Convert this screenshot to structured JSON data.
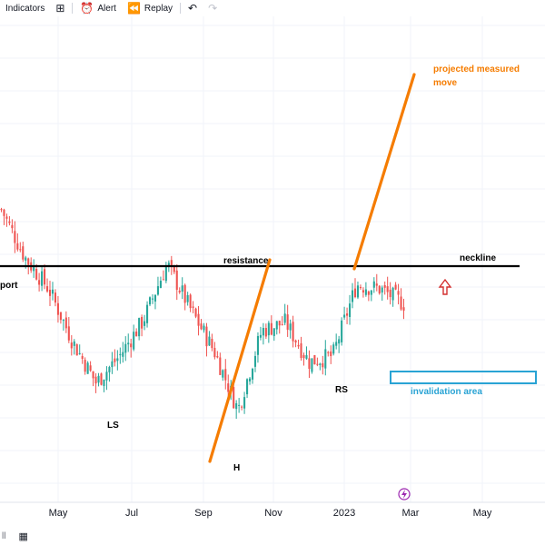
{
  "toolbar": {
    "indicators_label": "Indicators",
    "templates_icon": "grid-icon",
    "alert_label": "Alert",
    "alert_icon": "alarm-clock-icon",
    "replay_label": "Replay",
    "replay_icon": "rewind-icon",
    "undo_icon": "undo-icon",
    "redo_icon": "redo-icon"
  },
  "bottom_bar": {
    "left_text": "ll",
    "calendar_icon": "calendar-icon"
  },
  "colors": {
    "up": "#26a69a",
    "down": "#ef5350",
    "neckline": "#000000",
    "projection": "#f57c00",
    "annotation_orange": "#f57c00",
    "invalidation": "#29a3d4",
    "arrow": "#d32f2f",
    "grid": "#f0f3fa",
    "event_marker": "#9c27b0"
  },
  "chart_data": {
    "type": "candlestick",
    "x_axis_ticks": [
      "May",
      "Jul",
      "Sep",
      "Nov",
      "2023",
      "Mar",
      "May"
    ],
    "price_path": {
      "description_points": [
        {
          "date": "Mar",
          "price": 0.78
        },
        {
          "date": "Apr",
          "price": 0.55
        },
        {
          "date": "May",
          "price": 0.4
        },
        {
          "date": "early Jun",
          "price": 0.15
        },
        {
          "date": "mid Jun",
          "price": -0.05
        },
        {
          "date": "Jul",
          "price": 0.08
        },
        {
          "date": "Aug",
          "price": 0.25
        },
        {
          "date": "late Aug",
          "price": 0.52
        },
        {
          "date": "Sep",
          "price": 0.3
        },
        {
          "date": "early Oct",
          "price": 0.1
        },
        {
          "date": "mid Oct",
          "price": -0.18
        },
        {
          "date": "Nov",
          "price": 0.2
        },
        {
          "date": "Dec",
          "price": 0.24
        },
        {
          "date": "late Dec",
          "price": 0.05
        },
        {
          "date": "Jan",
          "price": 0.08
        },
        {
          "date": "early Feb",
          "price": 0.42
        },
        {
          "date": "Feb",
          "price": 0.4
        },
        {
          "date": "late Feb",
          "price": 0.33
        }
      ]
    },
    "annotations": {
      "neckline_label": "neckline",
      "resistance_label": "resistance",
      "support_label_partial": "port",
      "left_shoulder": "LS",
      "head": "H",
      "right_shoulder": "RS",
      "projection_label_line1": "projected measured",
      "projection_label_line2": "move",
      "invalidation_label": "invalidation area"
    },
    "grid": true,
    "legend": "none"
  }
}
